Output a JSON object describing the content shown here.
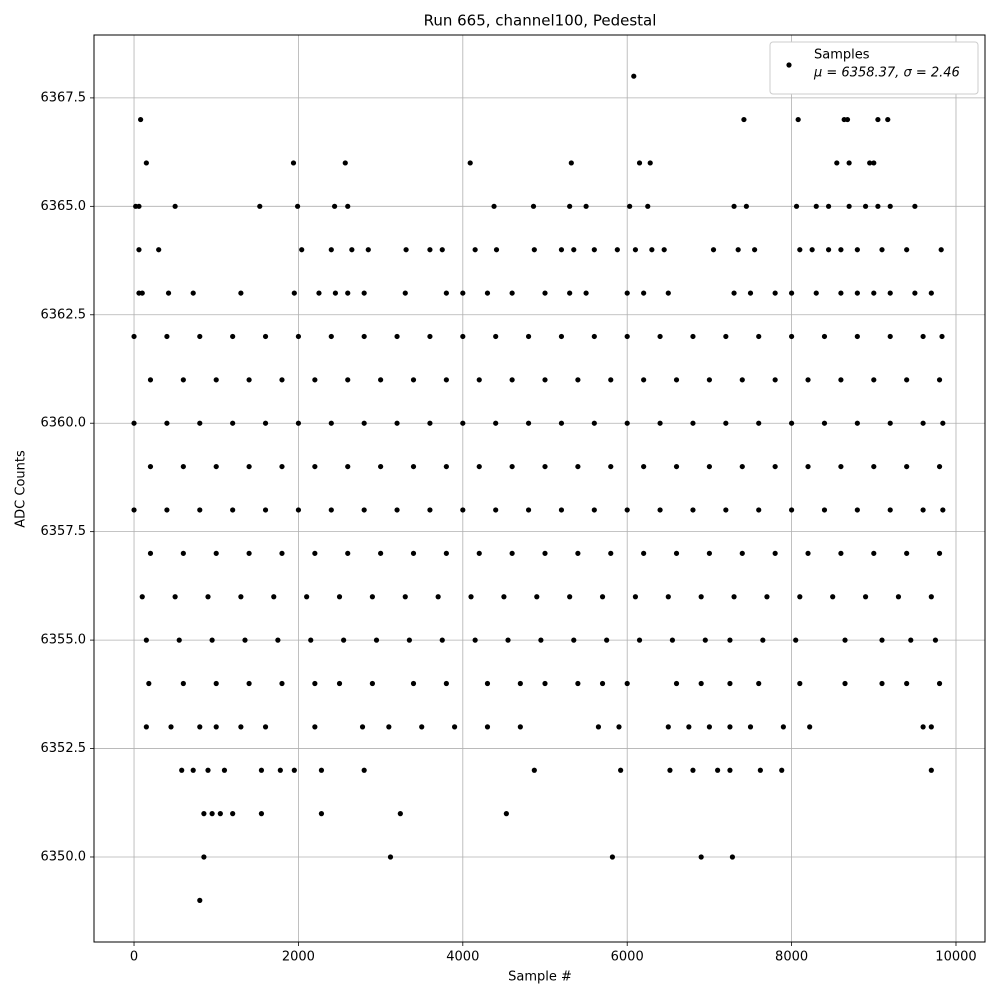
{
  "chart_data": {
    "type": "scatter",
    "title": "Run 665, channel100, Pedestal",
    "x_label": "Sample #",
    "y_label": "ADC Counts",
    "legend_note": "μ = 6358.37, σ = 2.46",
    "legend_position": "upper right",
    "grid": true,
    "xlim": [
      -487,
      10353
    ],
    "ylim": [
      6348.04,
      6368.95
    ],
    "xticks": [
      0,
      2000,
      4000,
      6000,
      8000,
      10000
    ],
    "yticks": [
      {
        "value": 6350,
        "label": "6350.0"
      },
      6352.5,
      {
        "value": 6355,
        "label": "6355.0"
      },
      6357.5,
      {
        "value": 6360,
        "label": "6360.0"
      },
      6362.5,
      {
        "value": 6365,
        "label": "6365.0"
      },
      6367.5
    ],
    "x": [
      0,
      400,
      800,
      1200,
      1600,
      2000,
      2400,
      2800,
      3200,
      3600,
      4000,
      4400,
      4800,
      5200,
      5600,
      6000,
      6400,
      6800,
      7200,
      7600,
      8000,
      8400,
      8800,
      9200,
      9600,
      9830,
      200,
      600,
      1000,
      1400,
      1800,
      2200,
      2600,
      3000,
      3400,
      3800,
      4200,
      4600,
      5000,
      5400,
      5800,
      6200,
      6600,
      7000,
      7400,
      7800,
      8200,
      8600,
      9000,
      9400,
      9800,
      0,
      400,
      800,
      1200,
      1600,
      2000,
      2400,
      2800,
      3200,
      3600,
      4000,
      4400,
      4800,
      5200,
      5600,
      6000,
      6400,
      6800,
      7200,
      7600,
      8000,
      8400,
      8800,
      9200,
      9600,
      9840,
      200,
      600,
      1000,
      1400,
      1800,
      2200,
      2600,
      3000,
      3400,
      3800,
      4200,
      4600,
      5000,
      5400,
      5800,
      6200,
      6600,
      7000,
      7400,
      7800,
      8200,
      8600,
      9000,
      9400,
      9800,
      0,
      400,
      800,
      1200,
      1600,
      2000,
      2400,
      2800,
      3200,
      3600,
      4000,
      4400,
      4800,
      5200,
      5600,
      6000,
      6400,
      6800,
      7200,
      7600,
      8000,
      8400,
      8800,
      9200,
      9600,
      9840,
      200,
      600,
      1000,
      1400,
      1800,
      2200,
      2600,
      3000,
      3400,
      3800,
      4200,
      4600,
      5000,
      5400,
      5800,
      6200,
      6600,
      7000,
      7400,
      7800,
      8200,
      8600,
      9000,
      9400,
      9800,
      100,
      500,
      900,
      1300,
      1700,
      2100,
      2500,
      2900,
      3300,
      3700,
      4100,
      4500,
      4900,
      5300,
      5700,
      6100,
      6500,
      6900,
      7300,
      7700,
      8100,
      8500,
      8900,
      9300,
      9700,
      150,
      550,
      950,
      1350,
      1750,
      2150,
      2550,
      2950,
      3350,
      3750,
      4150,
      4550,
      4950,
      5350,
      5750,
      6150,
      6550,
      6950,
      7250,
      7650,
      8050,
      8650,
      9100,
      9450,
      9750,
      180,
      600,
      1000,
      1400,
      1800,
      2200,
      2500,
      2900,
      3400,
      3800,
      4300,
      4700,
      5000,
      5400,
      5700,
      6000,
      6600,
      6900,
      7250,
      7600,
      8100,
      8650,
      9100,
      9400,
      9800,
      150,
      450,
      800,
      1000,
      1300,
      1600,
      2200,
      2780,
      3100,
      3500,
      3900,
      4300,
      4700,
      5650,
      5900,
      6500,
      6750,
      7000,
      7250,
      7500,
      7900,
      8220,
      9600,
      9700,
      580,
      720,
      900,
      1100,
      1550,
      1780,
      1950,
      2280,
      2800,
      4870,
      5920,
      6520,
      6800,
      7100,
      7250,
      7620,
      7880,
      9700,
      850,
      950,
      1050,
      1200,
      1550,
      2280,
      3240,
      4530,
      850,
      3120,
      5820,
      6900,
      7280,
      800,
      60,
      100,
      420,
      720,
      1300,
      1950,
      2250,
      2450,
      2600,
      2800,
      3300,
      3800,
      4000,
      4300,
      4600,
      5000,
      5300,
      5500,
      6000,
      6200,
      6500,
      7300,
      7500,
      7800,
      8000,
      8300,
      8600,
      8800,
      9000,
      9200,
      9500,
      9700,
      60,
      300,
      2040,
      2400,
      2650,
      2850,
      3310,
      3600,
      3750,
      4150,
      4410,
      4870,
      5200,
      5350,
      5600,
      5880,
      6100,
      6300,
      6450,
      7050,
      7350,
      7550,
      8100,
      8250,
      8450,
      8600,
      8800,
      9100,
      9400,
      9820,
      20,
      60,
      500,
      1530,
      1990,
      2440,
      2600,
      4380,
      4860,
      5300,
      5500,
      6030,
      6250,
      7300,
      7450,
      8060,
      8300,
      8450,
      8700,
      8900,
      9050,
      9200,
      9500,
      150,
      1940,
      2570,
      4090,
      5320,
      6150,
      6280,
      8550,
      8700,
      8950,
      9000,
      80,
      7420,
      8080,
      8640,
      8680,
      9050,
      9170,
      6080
    ],
    "series": [
      {
        "name": "Samples",
        "color": "#000000",
        "values": [
          6362,
          6362,
          6362,
          6362,
          6362,
          6362,
          6362,
          6362,
          6362,
          6362,
          6362,
          6362,
          6362,
          6362,
          6362,
          6362,
          6362,
          6362,
          6362,
          6362,
          6362,
          6362,
          6362,
          6362,
          6362,
          6362,
          6361,
          6361,
          6361,
          6361,
          6361,
          6361,
          6361,
          6361,
          6361,
          6361,
          6361,
          6361,
          6361,
          6361,
          6361,
          6361,
          6361,
          6361,
          6361,
          6361,
          6361,
          6361,
          6361,
          6361,
          6361,
          6360,
          6360,
          6360,
          6360,
          6360,
          6360,
          6360,
          6360,
          6360,
          6360,
          6360,
          6360,
          6360,
          6360,
          6360,
          6360,
          6360,
          6360,
          6360,
          6360,
          6360,
          6360,
          6360,
          6360,
          6360,
          6360,
          6359,
          6359,
          6359,
          6359,
          6359,
          6359,
          6359,
          6359,
          6359,
          6359,
          6359,
          6359,
          6359,
          6359,
          6359,
          6359,
          6359,
          6359,
          6359,
          6359,
          6359,
          6359,
          6359,
          6359,
          6359,
          6358,
          6358,
          6358,
          6358,
          6358,
          6358,
          6358,
          6358,
          6358,
          6358,
          6358,
          6358,
          6358,
          6358,
          6358,
          6358,
          6358,
          6358,
          6358,
          6358,
          6358,
          6358,
          6358,
          6358,
          6358,
          6358,
          6357,
          6357,
          6357,
          6357,
          6357,
          6357,
          6357,
          6357,
          6357,
          6357,
          6357,
          6357,
          6357,
          6357,
          6357,
          6357,
          6357,
          6357,
          6357,
          6357,
          6357,
          6357,
          6357,
          6357,
          6357,
          6356,
          6356,
          6356,
          6356,
          6356,
          6356,
          6356,
          6356,
          6356,
          6356,
          6356,
          6356,
          6356,
          6356,
          6356,
          6356,
          6356,
          6356,
          6356,
          6356,
          6356,
          6356,
          6356,
          6356,
          6356,
          6355,
          6355,
          6355,
          6355,
          6355,
          6355,
          6355,
          6355,
          6355,
          6355,
          6355,
          6355,
          6355,
          6355,
          6355,
          6355,
          6355,
          6355,
          6355,
          6355,
          6355,
          6355,
          6355,
          6355,
          6355,
          6354,
          6354,
          6354,
          6354,
          6354,
          6354,
          6354,
          6354,
          6354,
          6354,
          6354,
          6354,
          6354,
          6354,
          6354,
          6354,
          6354,
          6354,
          6354,
          6354,
          6354,
          6354,
          6354,
          6354,
          6354,
          6353,
          6353,
          6353,
          6353,
          6353,
          6353,
          6353,
          6353,
          6353,
          6353,
          6353,
          6353,
          6353,
          6353,
          6353,
          6353,
          6353,
          6353,
          6353,
          6353,
          6353,
          6353,
          6353,
          6353,
          6352,
          6352,
          6352,
          6352,
          6352,
          6352,
          6352,
          6352,
          6352,
          6352,
          6352,
          6352,
          6352,
          6352,
          6352,
          6352,
          6352,
          6352,
          6351,
          6351,
          6351,
          6351,
          6351,
          6351,
          6351,
          6351,
          6350,
          6350,
          6350,
          6350,
          6350,
          6349,
          6363,
          6363,
          6363,
          6363,
          6363,
          6363,
          6363,
          6363,
          6363,
          6363,
          6363,
          6363,
          6363,
          6363,
          6363,
          6363,
          6363,
          6363,
          6363,
          6363,
          6363,
          6363,
          6363,
          6363,
          6363,
          6363,
          6363,
          6363,
          6363,
          6363,
          6363,
          6363,
          6364,
          6364,
          6364,
          6364,
          6364,
          6364,
          6364,
          6364,
          6364,
          6364,
          6364,
          6364,
          6364,
          6364,
          6364,
          6364,
          6364,
          6364,
          6364,
          6364,
          6364,
          6364,
          6364,
          6364,
          6364,
          6364,
          6364,
          6364,
          6364,
          6364,
          6365,
          6365,
          6365,
          6365,
          6365,
          6365,
          6365,
          6365,
          6365,
          6365,
          6365,
          6365,
          6365,
          6365,
          6365,
          6365,
          6365,
          6365,
          6365,
          6365,
          6365,
          6365,
          6365,
          6366,
          6366,
          6366,
          6366,
          6366,
          6366,
          6366,
          6366,
          6366,
          6366,
          6366,
          6367,
          6367,
          6367,
          6367,
          6367,
          6367,
          6367,
          6368
        ]
      }
    ]
  }
}
